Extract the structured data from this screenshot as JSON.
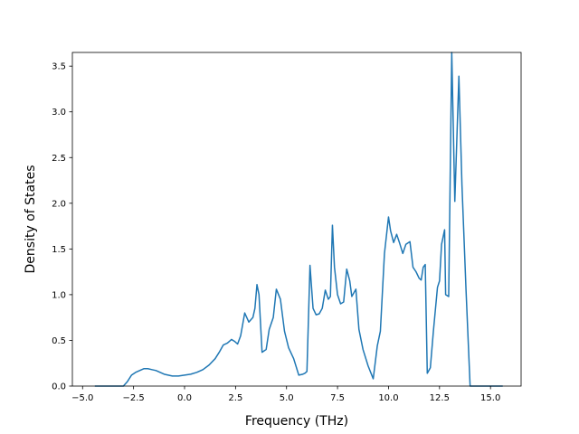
{
  "chart_data": {
    "type": "line",
    "title": "",
    "xlabel": "Frequency (THz)",
    "ylabel": "Density of States",
    "xlim": [
      -5.5,
      16.5
    ],
    "ylim": [
      0,
      3.65
    ],
    "grid": false,
    "legend": "none",
    "line_color": "#1f77b4",
    "xticks": [
      -5.0,
      -2.5,
      0.0,
      2.5,
      5.0,
      7.5,
      10.0,
      12.5,
      15.0
    ],
    "xtick_labels": [
      "−5.0",
      "−2.5",
      "0.0",
      "2.5",
      "5.0",
      "7.5",
      "10.0",
      "12.5",
      "15.0"
    ],
    "yticks": [
      0.0,
      0.5,
      1.0,
      1.5,
      2.0,
      2.5,
      3.0,
      3.5
    ],
    "ytick_labels": [
      "0.0",
      "0.5",
      "1.0",
      "1.5",
      "2.0",
      "2.5",
      "3.0",
      "3.5"
    ],
    "series": [
      {
        "x": [
          -4.4,
          -3.0,
          -2.8,
          -2.6,
          -2.4,
          -2.2,
          -2.0,
          -1.8,
          -1.6,
          -1.4,
          -1.2,
          -1.0,
          -0.8,
          -0.6,
          -0.3,
          0.0,
          0.3,
          0.6,
          0.9,
          1.2,
          1.5,
          1.7,
          1.9,
          2.1,
          2.3,
          2.45,
          2.6,
          2.75,
          2.95,
          3.15,
          3.35,
          3.45,
          3.55,
          3.65,
          3.8,
          4.0,
          4.15,
          4.35,
          4.5,
          4.7,
          4.9,
          5.1,
          5.35,
          5.6,
          5.8,
          5.9,
          6.0,
          6.15,
          6.3,
          6.45,
          6.6,
          6.75,
          6.9,
          7.05,
          7.15,
          7.25,
          7.35,
          7.5,
          7.65,
          7.8,
          7.95,
          8.1,
          8.2,
          8.4,
          8.55,
          8.75,
          9.0,
          9.25,
          9.45,
          9.6,
          9.8,
          10.0,
          10.1,
          10.25,
          10.4,
          10.55,
          10.7,
          10.85,
          11.05,
          11.2,
          11.35,
          11.5,
          11.6,
          11.7,
          11.8,
          11.9,
          12.05,
          12.2,
          12.4,
          12.5,
          12.6,
          12.75,
          12.8,
          12.95,
          13.1,
          13.25,
          13.45,
          13.6,
          13.8,
          14.0,
          14.3,
          15.6
        ],
        "y": [
          0.0,
          0.0,
          0.05,
          0.12,
          0.15,
          0.17,
          0.19,
          0.19,
          0.18,
          0.17,
          0.15,
          0.13,
          0.12,
          0.11,
          0.11,
          0.12,
          0.13,
          0.15,
          0.18,
          0.23,
          0.3,
          0.37,
          0.45,
          0.47,
          0.51,
          0.49,
          0.46,
          0.55,
          0.8,
          0.7,
          0.75,
          0.85,
          1.11,
          1.0,
          0.37,
          0.4,
          0.62,
          0.75,
          1.06,
          0.95,
          0.6,
          0.42,
          0.3,
          0.12,
          0.13,
          0.14,
          0.16,
          1.32,
          0.85,
          0.78,
          0.79,
          0.85,
          1.05,
          0.95,
          0.98,
          1.76,
          1.3,
          1.0,
          0.9,
          0.92,
          1.28,
          1.15,
          0.98,
          1.06,
          0.62,
          0.4,
          0.22,
          0.08,
          0.44,
          0.6,
          1.45,
          1.85,
          1.7,
          1.57,
          1.66,
          1.56,
          1.45,
          1.55,
          1.58,
          1.3,
          1.25,
          1.18,
          1.16,
          1.3,
          1.33,
          0.14,
          0.2,
          0.6,
          1.08,
          1.15,
          1.55,
          1.71,
          1.0,
          0.98,
          3.65,
          2.02,
          3.39,
          2.2,
          1.05,
          0.0,
          0.0,
          0.0
        ]
      }
    ]
  }
}
